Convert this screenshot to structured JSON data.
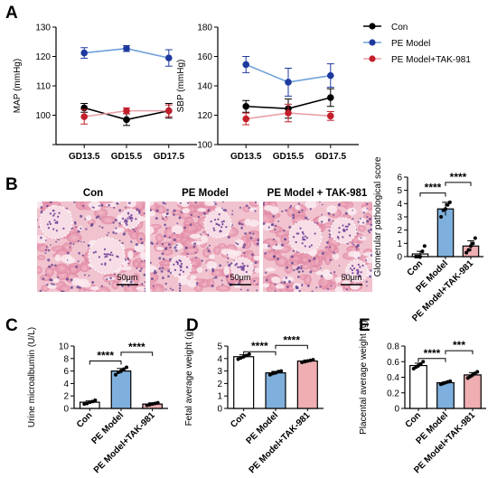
{
  "panels": {
    "A": "A",
    "B": "B",
    "C": "C",
    "D": "D",
    "E": "E"
  },
  "legend": [
    {
      "label": "Con",
      "color": "#000000"
    },
    {
      "label": "PE Model",
      "color": "#1f3a9f"
    },
    {
      "label": "PE Model+TAK-981",
      "color": "#c21f2b"
    }
  ],
  "micrographs": {
    "titles": [
      "Con",
      "PE Model",
      "PE Model + TAK-981"
    ],
    "scale_bar": "50μm"
  },
  "chart_data": [
    {
      "id": "MAP",
      "type": "line",
      "ylabel": "MAP (mmHg)",
      "ylim": [
        90,
        130
      ],
      "yticks": [
        90,
        100,
        110,
        120,
        130
      ],
      "yticklabels": [
        "",
        "100",
        "110",
        "120",
        "130"
      ],
      "categories": [
        "GD13.5",
        "GD15.5",
        "GD17.5"
      ],
      "series": [
        {
          "name": "Con",
          "values": [
            102.5,
            98.5,
            101.5
          ],
          "err": [
            1.5,
            2.0,
            2.5
          ],
          "color": "#000000",
          "line_color": "#000000"
        },
        {
          "name": "PE Model",
          "values": [
            121.2,
            122.7,
            119.5
          ],
          "err": [
            1.8,
            1.0,
            2.8
          ],
          "color": "#1f3a9f",
          "line_color": "#6d9fd8"
        },
        {
          "name": "PE Model+TAK-981",
          "values": [
            99.5,
            101.5,
            101.5
          ],
          "err": [
            2.5,
            1.0,
            2.0
          ],
          "color": "#c21f2b",
          "line_color": "#e8a0a5"
        }
      ]
    },
    {
      "id": "SBP",
      "type": "line",
      "ylabel": "SBP (mmHg)",
      "ylim": [
        100,
        180
      ],
      "yticks": [
        100,
        120,
        140,
        160,
        180
      ],
      "yticklabels": [
        "100",
        "120",
        "140",
        "160",
        "180"
      ],
      "categories": [
        "GD13.5",
        "GD15.5",
        "GD17.5"
      ],
      "series": [
        {
          "name": "Con",
          "values": [
            126.0,
            124.5,
            132.0
          ],
          "err": [
            4.0,
            6.5,
            6.0
          ],
          "color": "#000000",
          "line_color": "#000000"
        },
        {
          "name": "PE Model",
          "values": [
            154.5,
            142.5,
            147.0
          ],
          "err": [
            5.5,
            9.5,
            8.0
          ],
          "color": "#1f3a9f",
          "line_color": "#6d9fd8"
        },
        {
          "name": "PE Model+TAK-981",
          "values": [
            117.5,
            121.5,
            119.5
          ],
          "err": [
            4.0,
            6.0,
            3.0
          ],
          "color": "#c21f2b",
          "line_color": "#e8a0a5"
        }
      ]
    },
    {
      "id": "glom",
      "type": "bar",
      "ylabel": "Glomerular pathological score",
      "ylim": [
        0,
        6
      ],
      "yticks": [
        0,
        1,
        2,
        3,
        4,
        5,
        6
      ],
      "yticklabels": [
        "0",
        "1",
        "2",
        "3",
        "4",
        "5",
        "6"
      ],
      "categories": [
        "Con",
        "PE Model",
        "PE Model+TAK-981"
      ],
      "values": [
        0.2,
        3.6,
        0.8
      ],
      "err": [
        0.2,
        0.5,
        0.4
      ],
      "points": [
        [
          0,
          0,
          0,
          0.4,
          0.8
        ],
        [
          3.0,
          3.5,
          3.6,
          3.9,
          4.1
        ],
        [
          0.3,
          0.5,
          0.8,
          1.0,
          1.4
        ]
      ],
      "fills": [
        "#ffffff",
        "#7fb0dd",
        "#eeaeb2"
      ],
      "significance": [
        {
          "from": 0,
          "to": 1,
          "label": "****",
          "y": 4.8
        },
        {
          "from": 1,
          "to": 2,
          "label": "****",
          "y": 5.6
        }
      ]
    },
    {
      "id": "urine",
      "type": "bar",
      "ylabel": "Urine microalbumin (U/L)",
      "ylim": [
        0,
        10
      ],
      "yticks": [
        0,
        2,
        4,
        6,
        8,
        10
      ],
      "yticklabels": [
        "0",
        "2",
        "4",
        "6",
        "8",
        "10"
      ],
      "categories": [
        "Con",
        "PE Model",
        "PE Model+TAK-981"
      ],
      "values": [
        1.0,
        6.0,
        0.7
      ],
      "err": [
        0.2,
        0.4,
        0.2
      ],
      "points": [
        [
          0.7,
          0.8,
          1.0,
          1.1,
          1.3
        ],
        [
          5.4,
          5.8,
          6.0,
          6.3,
          6.6
        ],
        [
          0.5,
          0.6,
          0.7,
          0.8,
          0.9
        ]
      ],
      "fills": [
        "#ffffff",
        "#7fb0dd",
        "#eeaeb2"
      ],
      "significance": [
        {
          "from": 0,
          "to": 1,
          "label": "****",
          "y": 7.6
        },
        {
          "from": 1,
          "to": 2,
          "label": "****",
          "y": 9.0
        }
      ]
    },
    {
      "id": "fetal",
      "type": "bar",
      "ylabel": "Fetal average weight (g)",
      "ylim": [
        0,
        5
      ],
      "yticks": [
        0,
        1,
        2,
        3,
        4,
        5
      ],
      "yticklabels": [
        "0",
        "1",
        "2",
        "3",
        "4",
        "5"
      ],
      "categories": [
        "Con",
        "PE Model",
        "PE Model+TAK-981"
      ],
      "values": [
        4.15,
        2.85,
        3.8
      ],
      "err": [
        0.15,
        0.12,
        0.08
      ],
      "points": [
        [
          3.95,
          4.05,
          4.15,
          4.25,
          4.35
        ],
        [
          2.7,
          2.8,
          2.85,
          2.95,
          3.0
        ],
        [
          3.7,
          3.75,
          3.8,
          3.85,
          3.9
        ]
      ],
      "fills": [
        "#ffffff",
        "#7fb0dd",
        "#eeaeb2"
      ],
      "significance": [
        {
          "from": 0,
          "to": 1,
          "label": "****",
          "y": 4.55
        },
        {
          "from": 1,
          "to": 2,
          "label": "****",
          "y": 5.05
        }
      ]
    },
    {
      "id": "placental",
      "type": "bar",
      "ylabel": "Placental average weight (g)",
      "ylim": [
        0,
        0.8
      ],
      "yticks": [
        0,
        0.2,
        0.4,
        0.6,
        0.8
      ],
      "yticklabels": [
        "0",
        "0.2",
        "0.4",
        "0.6",
        "0.8"
      ],
      "categories": [
        "Con",
        "PE Model",
        "PE Model+TAK-981"
      ],
      "values": [
        0.55,
        0.33,
        0.43
      ],
      "err": [
        0.03,
        0.01,
        0.03
      ],
      "points": [
        [
          0.51,
          0.53,
          0.55,
          0.57,
          0.6
        ],
        [
          0.31,
          0.32,
          0.33,
          0.34,
          0.35
        ],
        [
          0.39,
          0.41,
          0.43,
          0.45,
          0.47
        ]
      ],
      "fills": [
        "#ffffff",
        "#7fb0dd",
        "#eeaeb2"
      ],
      "significance": [
        {
          "from": 0,
          "to": 1,
          "label": "****",
          "y": 0.64
        },
        {
          "from": 1,
          "to": 2,
          "label": "***",
          "y": 0.74
        }
      ]
    }
  ]
}
